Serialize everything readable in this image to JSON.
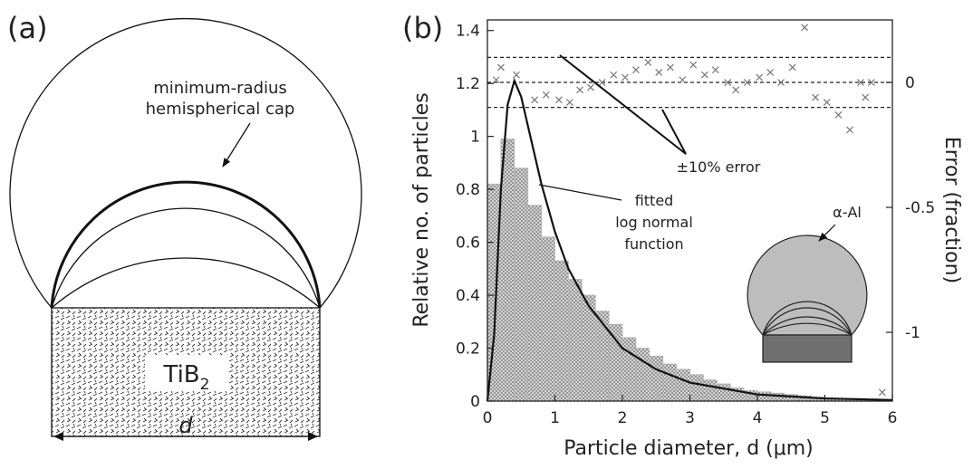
{
  "panel_a": {
    "label": "(a)",
    "cap_label": [
      "minimum-radius",
      "hemispherical cap"
    ],
    "particle": "TiB",
    "particle_subscript": "2",
    "width_label": "d"
  },
  "chart_data": {
    "type": "histogram",
    "panel_label": "(b)",
    "x_label": "Particle diameter, d (μm)",
    "y_label": "Relative no. of particles",
    "y2_label": "Error (fraction)",
    "bins": [
      0,
      0.2,
      0.4,
      0.6,
      0.8,
      1,
      1.2,
      1.4,
      1.6,
      1.8,
      2,
      2.2,
      2.4,
      2.6,
      2.8,
      3,
      3.2,
      3.4,
      3.6,
      3.8,
      4,
      4.2,
      4.4,
      4.6,
      4.8,
      5,
      5.2,
      5.4,
      5.6,
      5.8,
      6
    ],
    "counts": [
      0.82,
      0.99,
      0.88,
      0.74,
      0.62,
      0.53,
      0.46,
      0.4,
      0.34,
      0.29,
      0.24,
      0.2,
      0.17,
      0.14,
      0.12,
      0.1,
      0.08,
      0.065,
      0.05,
      0.04,
      0.035,
      0.03,
      0.025,
      0.02,
      0.015,
      0.012,
      0.01,
      0.01,
      0.008,
      0.005
    ],
    "color": "#b5b5b5",
    "fit_curve": {
      "color": "#111",
      "x": [
        0,
        0.1,
        0.2,
        0.3,
        0.4,
        0.5,
        0.6,
        0.8,
        1,
        1.2,
        1.5,
        2,
        2.5,
        3,
        4,
        5,
        6
      ],
      "values": [
        0,
        0.25,
        0.8,
        1.12,
        1.21,
        1.15,
        1.04,
        0.82,
        0.64,
        0.5,
        0.36,
        0.2,
        0.12,
        0.07,
        0.025,
        0.01,
        0.004
      ]
    },
    "error_points": {
      "axis": "y2",
      "color": "#777",
      "x": [
        0.13,
        0.2,
        0.43,
        0.7,
        0.87,
        1.06,
        1.22,
        1.37,
        1.53,
        1.7,
        1.87,
        2.04,
        2.2,
        2.38,
        2.54,
        2.71,
        2.89,
        3.05,
        3.22,
        3.38,
        3.56,
        3.68,
        3.85,
        4.03,
        4.19,
        4.35,
        4.52,
        4.7,
        4.86,
        5.03,
        5.2,
        5.37,
        5.53,
        5.6,
        5.69,
        5.85
      ],
      "values": [
        0.01,
        0.06,
        0.03,
        -0.07,
        -0.05,
        -0.07,
        -0.08,
        -0.03,
        -0.02,
        0,
        0.03,
        0.02,
        0.05,
        0.08,
        0.04,
        0.06,
        0.01,
        0.07,
        0.03,
        0.05,
        0,
        -0.03,
        0,
        0.02,
        0.04,
        0,
        0.06,
        0.22,
        -0.06,
        -0.08,
        -0.13,
        -0.19,
        0,
        -0.06,
        0,
        -1.24
      ]
    },
    "y2_reference_lines": [
      0.1,
      0,
      -0.1
    ],
    "annotations": {
      "error_band": "±10% error",
      "fit": [
        "fitted",
        "log normal",
        "function"
      ],
      "inset": "α-Al"
    },
    "xlim": [
      0,
      6
    ],
    "xticks": [
      0,
      1,
      2,
      3,
      4,
      5,
      6
    ],
    "ylim": [
      0,
      1.44
    ],
    "yticks": [
      0,
      0.2,
      0.4,
      0.6,
      0.8,
      1,
      1.2,
      1.4
    ],
    "y2lim": [
      -1.275,
      0.25
    ],
    "y2ticks": [
      0,
      -0.5,
      -1
    ]
  }
}
